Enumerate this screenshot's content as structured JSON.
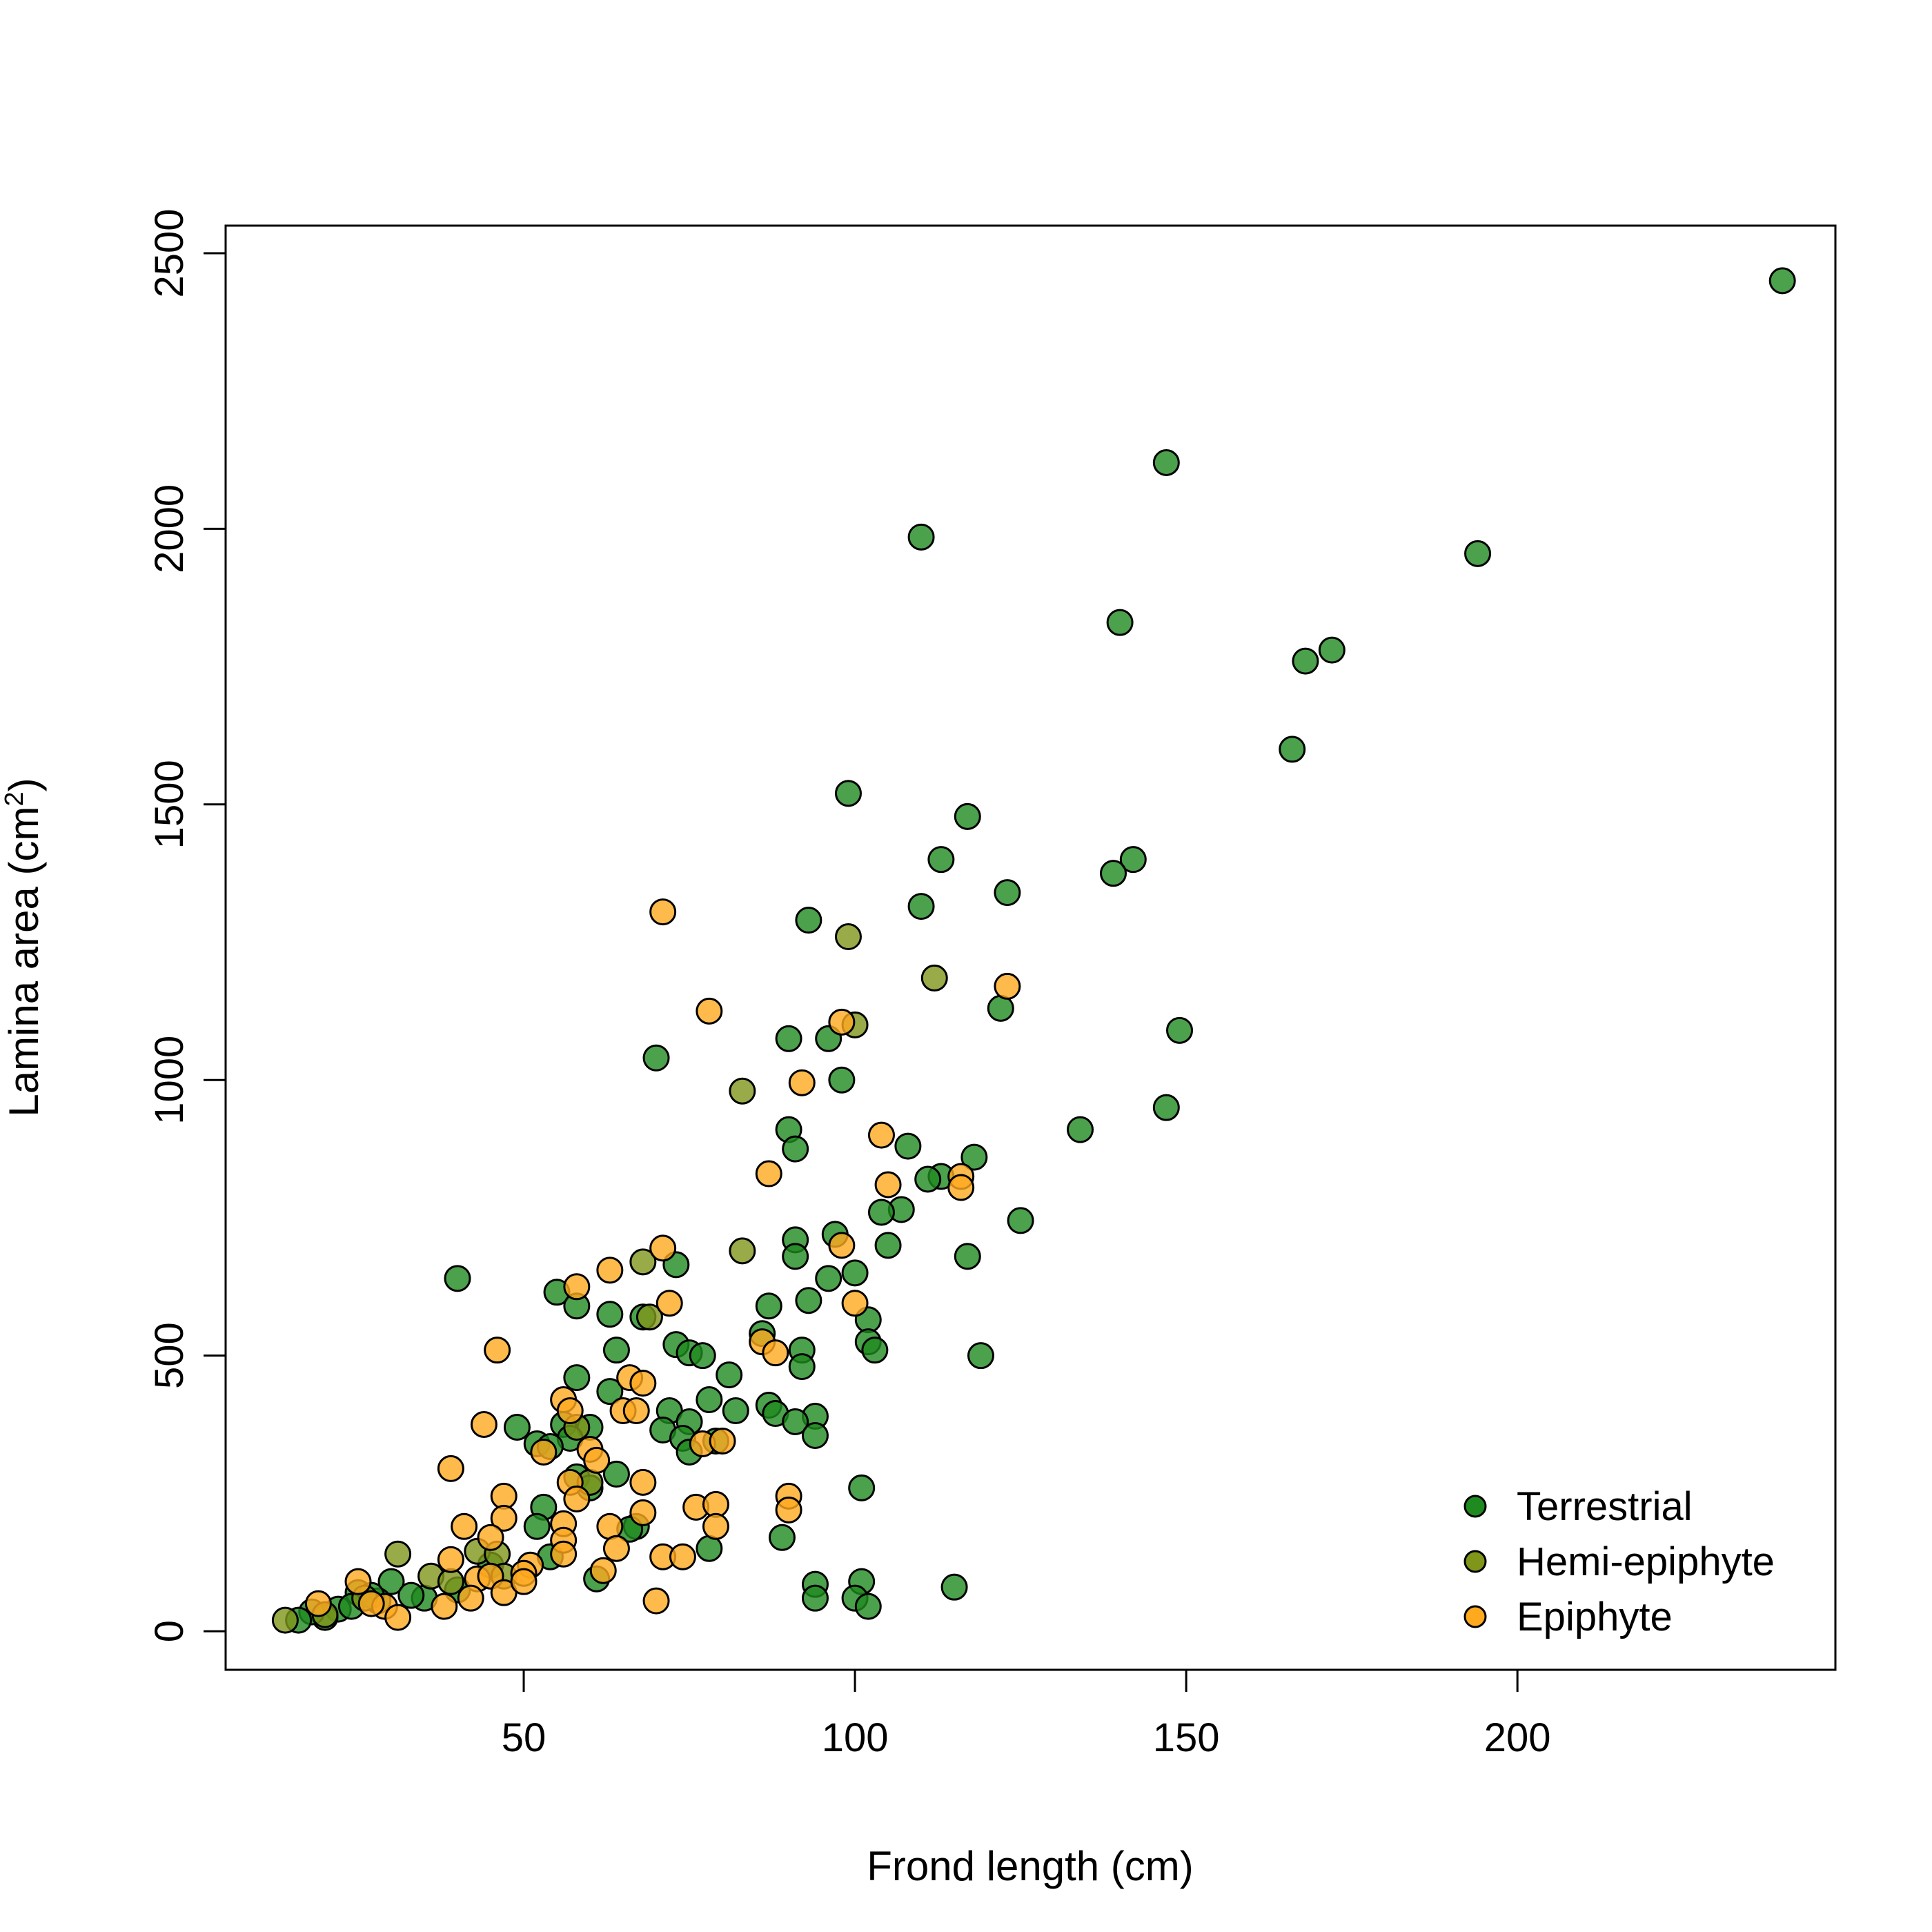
{
  "chart_data": {
    "type": "scatter",
    "xlabel": "Frond length  (cm)",
    "ylabel": "Lamina area  (cm",
    "ylabel_sup": "2",
    "ylabel_close": ")",
    "xlim": [
      5,
      248
    ],
    "ylim": [
      -70,
      2550
    ],
    "xticks": [
      50,
      100,
      150,
      200
    ],
    "yticks": [
      0,
      500,
      1000,
      1500,
      2000,
      2500
    ],
    "grid": false,
    "legend_position": "bottom-right",
    "series": [
      {
        "name": "Terrestrial",
        "color": "#1F8A1F",
        "points": [
          [
            240,
            2450
          ],
          [
            147,
            2120
          ],
          [
            110,
            1985
          ],
          [
            194,
            1955
          ],
          [
            140,
            1830
          ],
          [
            172,
            1780
          ],
          [
            168,
            1760
          ],
          [
            166,
            1600
          ],
          [
            99,
            1520
          ],
          [
            117,
            1478
          ],
          [
            113,
            1400
          ],
          [
            142,
            1400
          ],
          [
            139,
            1375
          ],
          [
            123,
            1340
          ],
          [
            110,
            1315
          ],
          [
            93,
            1290
          ],
          [
            122,
            1130
          ],
          [
            149,
            1090
          ],
          [
            96,
            1075
          ],
          [
            90,
            1075
          ],
          [
            70,
            1040
          ],
          [
            98,
            1000
          ],
          [
            147,
            950
          ],
          [
            134,
            910
          ],
          [
            90,
            910
          ],
          [
            91,
            875
          ],
          [
            108,
            880
          ],
          [
            118,
            860
          ],
          [
            113,
            825
          ],
          [
            111,
            820
          ],
          [
            107,
            765
          ],
          [
            104,
            760
          ],
          [
            125,
            745
          ],
          [
            97,
            720
          ],
          [
            91,
            710
          ],
          [
            105,
            700
          ],
          [
            117,
            680
          ],
          [
            91,
            680
          ],
          [
            100,
            650
          ],
          [
            96,
            640
          ],
          [
            73,
            665
          ],
          [
            40,
            640
          ],
          [
            55,
            615
          ],
          [
            93,
            600
          ],
          [
            58,
            590
          ],
          [
            87,
            590
          ],
          [
            63,
            575
          ],
          [
            68,
            570
          ],
          [
            102,
            565
          ],
          [
            86,
            540
          ],
          [
            102,
            525
          ],
          [
            73,
            520
          ],
          [
            75,
            505
          ],
          [
            92,
            510
          ],
          [
            103,
            510
          ],
          [
            64,
            510
          ],
          [
            77,
            500
          ],
          [
            119,
            500
          ],
          [
            92,
            480
          ],
          [
            81,
            465
          ],
          [
            58,
            460
          ],
          [
            63,
            435
          ],
          [
            78,
            420
          ],
          [
            87,
            410
          ],
          [
            88,
            395
          ],
          [
            82,
            400
          ],
          [
            72,
            400
          ],
          [
            94,
            390
          ],
          [
            75,
            380
          ],
          [
            91,
            380
          ],
          [
            49,
            370
          ],
          [
            56,
            375
          ],
          [
            60,
            370
          ],
          [
            71,
            365
          ],
          [
            74,
            350
          ],
          [
            79,
            345
          ],
          [
            94,
            355
          ],
          [
            52,
            340
          ],
          [
            57,
            350
          ],
          [
            54,
            335
          ],
          [
            75,
            325
          ],
          [
            58,
            280
          ],
          [
            64,
            285
          ],
          [
            60,
            260
          ],
          [
            101,
            260
          ],
          [
            53,
            225
          ],
          [
            52,
            190
          ],
          [
            67,
            190
          ],
          [
            66,
            185
          ],
          [
            89,
            170
          ],
          [
            78,
            150
          ],
          [
            54,
            135
          ],
          [
            61,
            95
          ],
          [
            94,
            85
          ],
          [
            101,
            90
          ],
          [
            115,
            80
          ],
          [
            94,
            60
          ],
          [
            100,
            60
          ],
          [
            102,
            45
          ],
          [
            45,
            120
          ],
          [
            40,
            75
          ],
          [
            35,
            60
          ],
          [
            30,
            90
          ],
          [
            33,
            65
          ],
          [
            28,
            55
          ],
          [
            25,
            70
          ],
          [
            22,
            40
          ],
          [
            20,
            25
          ],
          [
            18,
            35
          ],
          [
            16,
            20
          ],
          [
            24,
            45
          ],
          [
            27,
            65
          ]
        ]
      },
      {
        "name": "Hemi-epiphyte",
        "color": "#7F961A",
        "points": [
          [
            99,
            1260
          ],
          [
            112,
            1185
          ],
          [
            100,
            1100
          ],
          [
            83,
            980
          ],
          [
            83,
            690
          ],
          [
            68,
            670
          ],
          [
            69,
            570
          ],
          [
            58,
            370
          ],
          [
            60,
            270
          ],
          [
            43,
            145
          ],
          [
            46,
            140
          ],
          [
            31,
            140
          ],
          [
            36,
            100
          ],
          [
            39,
            90
          ],
          [
            14,
            20
          ],
          [
            20,
            30
          ],
          [
            26,
            60
          ],
          [
            47,
            100
          ]
        ]
      },
      {
        "name": "Epiphyte",
        "color": "#FFA91F",
        "points": [
          [
            71,
            1305
          ],
          [
            78,
            1125
          ],
          [
            123,
            1170
          ],
          [
            98,
            1105
          ],
          [
            92,
            995
          ],
          [
            104,
            900
          ],
          [
            87,
            830
          ],
          [
            105,
            810
          ],
          [
            116,
            825
          ],
          [
            116,
            805
          ],
          [
            98,
            700
          ],
          [
            71,
            695
          ],
          [
            63,
            655
          ],
          [
            58,
            625
          ],
          [
            72,
            595
          ],
          [
            100,
            595
          ],
          [
            86,
            525
          ],
          [
            88,
            505
          ],
          [
            46,
            510
          ],
          [
            66,
            460
          ],
          [
            68,
            450
          ],
          [
            56,
            420
          ],
          [
            57,
            400
          ],
          [
            65,
            400
          ],
          [
            67,
            400
          ],
          [
            44,
            375
          ],
          [
            77,
            340
          ],
          [
            80,
            345
          ],
          [
            60,
            330
          ],
          [
            53,
            325
          ],
          [
            61,
            310
          ],
          [
            39,
            295
          ],
          [
            57,
            270
          ],
          [
            68,
            270
          ],
          [
            47,
            245
          ],
          [
            90,
            245
          ],
          [
            58,
            240
          ],
          [
            76,
            225
          ],
          [
            79,
            230
          ],
          [
            90,
            220
          ],
          [
            47,
            205
          ],
          [
            68,
            215
          ],
          [
            56,
            195
          ],
          [
            41,
            190
          ],
          [
            63,
            190
          ],
          [
            79,
            190
          ],
          [
            56,
            165
          ],
          [
            45,
            170
          ],
          [
            64,
            150
          ],
          [
            56,
            140
          ],
          [
            71,
            135
          ],
          [
            74,
            135
          ],
          [
            39,
            130
          ],
          [
            62,
            110
          ],
          [
            51,
            120
          ],
          [
            50,
            105
          ],
          [
            43,
            95
          ],
          [
            45,
            100
          ],
          [
            47,
            70
          ],
          [
            42,
            60
          ],
          [
            38,
            45
          ],
          [
            50,
            90
          ],
          [
            29,
            45
          ],
          [
            31,
            25
          ],
          [
            25,
            90
          ],
          [
            27,
            50
          ],
          [
            19,
            50
          ],
          [
            70,
            55
          ]
        ]
      }
    ]
  }
}
